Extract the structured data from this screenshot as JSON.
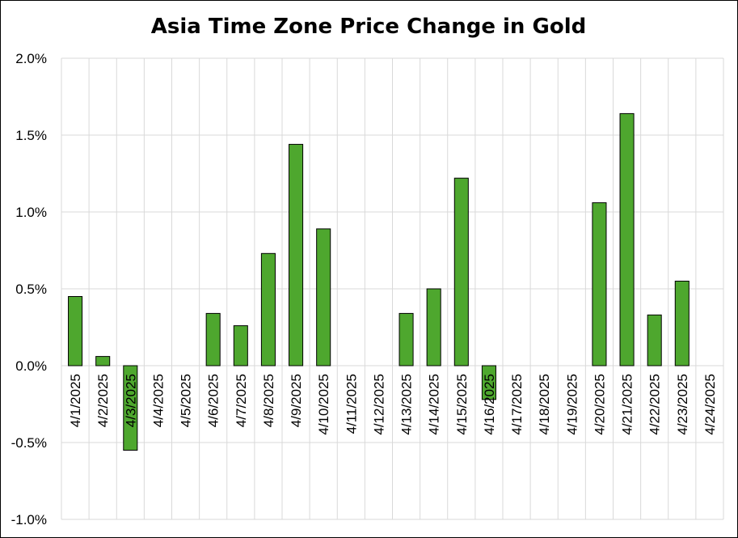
{
  "chart_data": {
    "type": "bar",
    "title": "Asia Time Zone Price Change in Gold",
    "xlabel": "",
    "ylabel": "",
    "categories": [
      "4/1/2025",
      "4/2/2025",
      "4/3/2025",
      "4/4/2025",
      "4/5/2025",
      "4/6/2025",
      "4/7/2025",
      "4/8/2025",
      "4/9/2025",
      "4/10/2025",
      "4/11/2025",
      "4/12/2025",
      "4/13/2025",
      "4/14/2025",
      "4/15/2025",
      "4/16/2025",
      "4/17/2025",
      "4/18/2025",
      "4/19/2025",
      "4/20/2025",
      "4/21/2025",
      "4/22/2025",
      "4/23/2025",
      "4/24/2025"
    ],
    "values": [
      0.45,
      0.06,
      -0.55,
      0,
      0,
      0.34,
      0.26,
      0.73,
      1.44,
      0.89,
      0,
      0,
      0.34,
      0.5,
      1.22,
      -0.22,
      0,
      0,
      0,
      1.06,
      1.64,
      0.33,
      0.55,
      0
    ],
    "value_unit": "%",
    "ylim": [
      -1.0,
      2.0
    ],
    "yticks": [
      -1.0,
      -0.5,
      0.0,
      0.5,
      1.0,
      1.5,
      2.0
    ],
    "ytick_labels": [
      "-1.0%",
      "-0.5%",
      "0.0%",
      "0.5%",
      "1.0%",
      "1.5%",
      "2.0%"
    ],
    "grid": true,
    "legend": "none",
    "bar_color": "#4ea72e",
    "bar_edge_color": "#000000"
  }
}
